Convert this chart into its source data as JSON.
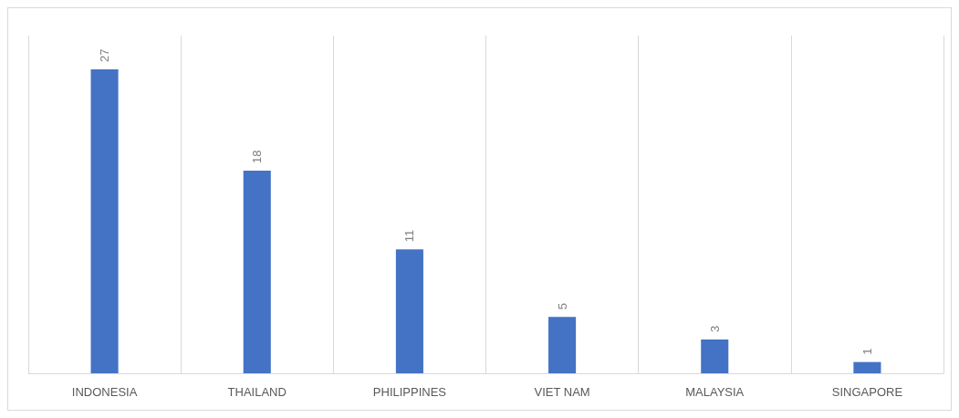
{
  "chart_data": {
    "type": "bar",
    "categories": [
      "INDONESIA",
      "THAILAND",
      "PHILIPPINES",
      "VIET NAM",
      "MALAYSIA",
      "SINGAPORE"
    ],
    "values": [
      27,
      18,
      11,
      5,
      3,
      1
    ],
    "color": "#4472c4",
    "data_labels": true,
    "grid": "x"
  }
}
